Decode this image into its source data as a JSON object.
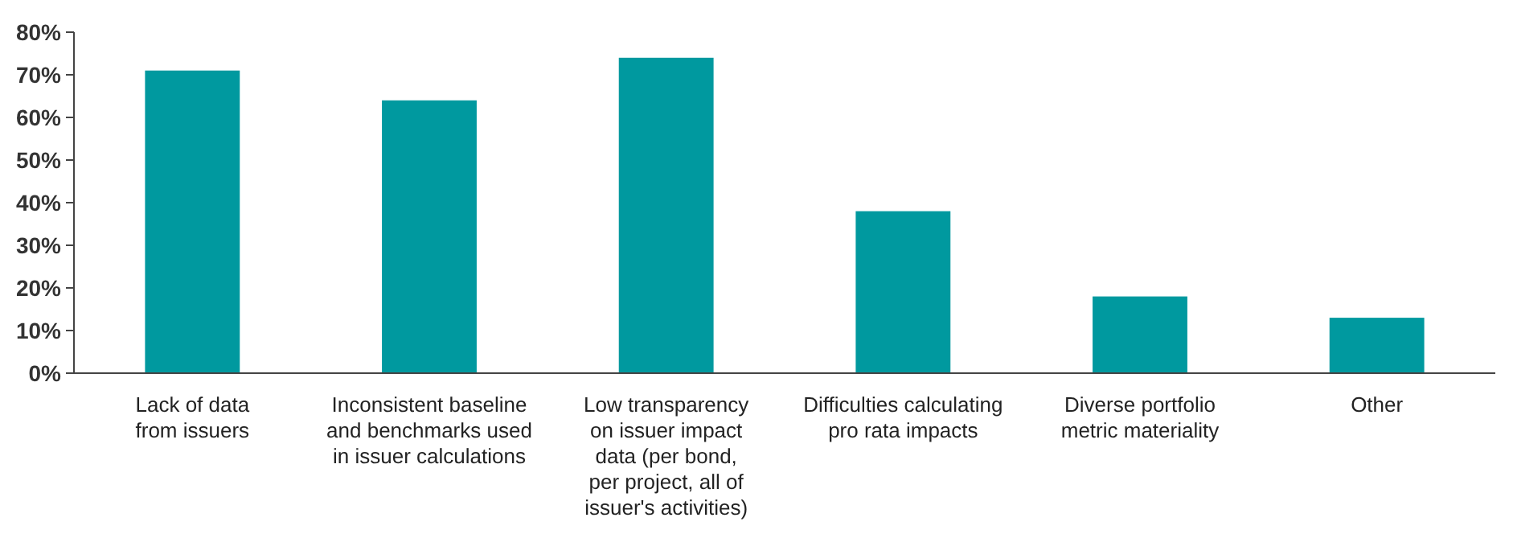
{
  "chart_data": {
    "type": "bar",
    "categories": [
      "Lack of data\nfrom issuers",
      "Inconsistent baseline\nand benchmarks used\nin issuer calculations",
      "Low transparency\non issuer impact\ndata (per bond,\nper project, all of\nissuer's activities)",
      "Difficulties calculating\npro rata impacts",
      "Diverse portfolio\nmetric materiality",
      "Other"
    ],
    "values": [
      71,
      64,
      74,
      38,
      18,
      13
    ],
    "color": "#00999f",
    "ylim": [
      0,
      80
    ],
    "yticks": [
      {
        "value": 0,
        "label": "0%"
      },
      {
        "value": 10,
        "label": "10%"
      },
      {
        "value": 20,
        "label": "20%"
      },
      {
        "value": 30,
        "label": "30%"
      },
      {
        "value": 40,
        "label": "40%"
      },
      {
        "value": 50,
        "label": "50%"
      },
      {
        "value": 60,
        "label": "60%"
      },
      {
        "value": 70,
        "label": "70%"
      },
      {
        "value": 80,
        "label": "80%"
      }
    ],
    "grid": false
  }
}
